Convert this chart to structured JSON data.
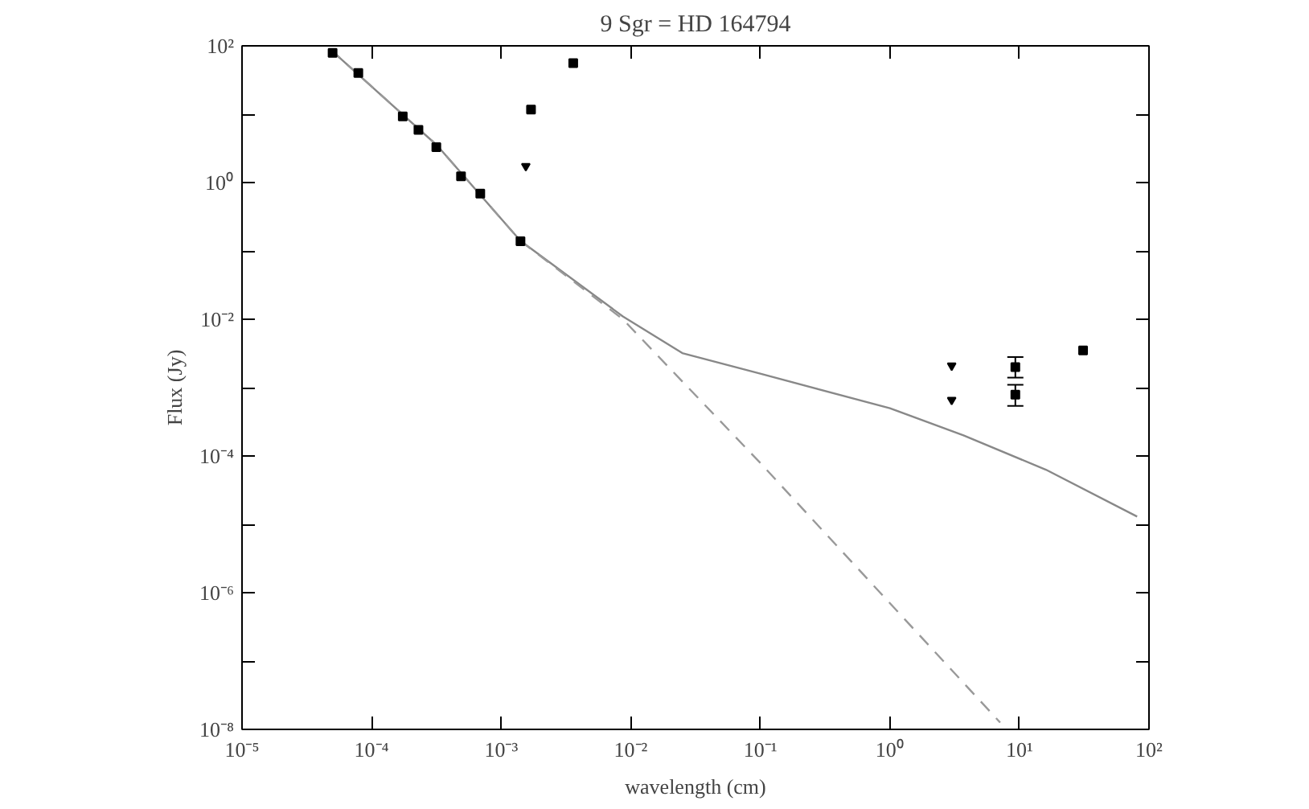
{
  "chart_data": {
    "type": "scatter",
    "title": "9 Sgr = HD 164794",
    "xlabel": "wavelength (cm)",
    "ylabel": "Flux (Jy)",
    "log": "xy",
    "grid": false,
    "xlim": [
      1e-05,
      100
    ],
    "ylim": [
      1e-08,
      100
    ],
    "xticks": [
      {
        "value": 1e-05,
        "label": "10⁻⁵"
      },
      {
        "value": 0.0001,
        "label": "10⁻⁴"
      },
      {
        "value": 0.001,
        "label": "10⁻³"
      },
      {
        "value": 0.01,
        "label": "10⁻²"
      },
      {
        "value": 0.1,
        "label": "10⁻¹"
      },
      {
        "value": 1,
        "label": "10⁰"
      },
      {
        "value": 10,
        "label": "10¹"
      },
      {
        "value": 100,
        "label": "10²"
      }
    ],
    "yticks": [
      {
        "value": 1e-08,
        "label": "10⁻⁸"
      },
      {
        "value": 1e-07,
        "label": null
      },
      {
        "value": 1e-06,
        "label": "10⁻⁶"
      },
      {
        "value": 1e-05,
        "label": null
      },
      {
        "value": 0.0001,
        "label": "10⁻⁴"
      },
      {
        "value": 0.001,
        "label": null
      },
      {
        "value": 0.01,
        "label": "10⁻²"
      },
      {
        "value": 0.1,
        "label": null
      },
      {
        "value": 1,
        "label": "10⁰"
      },
      {
        "value": 10,
        "label": null
      },
      {
        "value": 100,
        "label": "10²"
      }
    ],
    "series": [
      {
        "type": "line",
        "color": "#888888",
        "line_style": "solid",
        "x": [
          4.8e-05,
          0.00032,
          0.00141,
          0.0087,
          0.025,
          0.1,
          1,
          3.7,
          16,
          81
        ],
        "values": [
          89,
          3.5,
          0.14,
          0.011,
          0.0032,
          0.0016,
          0.0005,
          0.0002,
          6.3e-05,
          1.3e-05
        ]
      },
      {
        "type": "line",
        "color": "#999999",
        "line_style": "dashed",
        "x": [
          4.8e-05,
          0.00032,
          0.00141,
          0.0087,
          0.1,
          7.1
        ],
        "values": [
          89,
          3.5,
          0.14,
          0.01,
          7.9e-05,
          1.26e-08
        ]
      },
      {
        "color": "#000000",
        "marker": "square",
        "x": [
          5e-05,
          7.9e-05,
          0.000174,
          0.00023,
          0.000316,
          0.00049,
          0.00069,
          0.00141,
          0.0017,
          0.0036,
          9.3,
          9.3,
          31
        ],
        "values": [
          79,
          40,
          9.3,
          5.9,
          3.3,
          1.23,
          0.69,
          0.138,
          11.7,
          56,
          0.002,
          0.00079,
          0.0035
        ],
        "errors": [
          null,
          null,
          null,
          null,
          null,
          null,
          null,
          null,
          null,
          null,
          [
            0.0014,
            0.0028
          ],
          [
            0.00054,
            0.0011
          ],
          null
        ]
      },
      {
        "color": "#000000",
        "marker": "triangle",
        "x": [
          0.00155,
          3.0,
          3.0
        ],
        "values": [
          1.74,
          0.0021,
          0.00066
        ]
      }
    ]
  }
}
